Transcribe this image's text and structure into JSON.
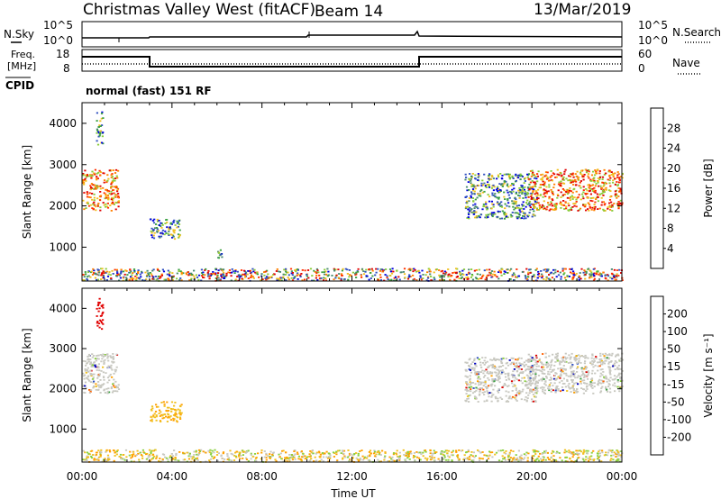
{
  "header": {
    "station": "Christmas Valley West (fitACF)",
    "beam": "Beam 14",
    "date": "13/Mar/2019"
  },
  "status_panels": {
    "nsky_label": "N.Sky",
    "nsearch_label": "N.Search",
    "nsky_ticks": [
      "10^5",
      "10^0"
    ],
    "nsearch_ticks": [
      "10^5",
      "10^0"
    ],
    "freq_label_1": "Freq.",
    "freq_label_2": "[MHz]",
    "freq_ticks": [
      "18",
      "8"
    ],
    "nave_label": "Nave",
    "nave_ticks": [
      "60",
      "0"
    ],
    "cpid_label": "CPID",
    "cpid_text": "normal (fast) 151 RF"
  },
  "chart_data": [
    {
      "type": "heatmap",
      "panel": "power",
      "ylabel": "Slant Range [km]",
      "yticks": [
        1000,
        2000,
        3000,
        4000
      ],
      "ylim": [
        180,
        4500
      ],
      "xlim": [
        0,
        24
      ],
      "colorbar_label": "Power [dB]",
      "colorbar_ticks": [
        "28",
        "24",
        "20",
        "16",
        "12",
        "8",
        "4"
      ],
      "colorbar_colors": [
        "#0000e0",
        "#3050c0",
        "#4a8a70",
        "#3aa040",
        "#8acc3a",
        "#f0c020",
        "#ff8000",
        "#ff3000",
        "#e00000"
      ],
      "regions": [
        {
          "x": [
            0.0,
            1.6
          ],
          "y": [
            1900,
            2900
          ],
          "level": "high"
        },
        {
          "x": [
            3.0,
            4.4
          ],
          "y": [
            1200,
            1700
          ],
          "level": "mid"
        },
        {
          "x": [
            0.6,
            0.9
          ],
          "y": [
            3500,
            4300
          ],
          "level": "mid"
        },
        {
          "x": [
            6.0,
            6.2
          ],
          "y": [
            750,
            950
          ],
          "level": "mid"
        },
        {
          "x": [
            17.0,
            20.2
          ],
          "y": [
            1700,
            2800
          ],
          "level": "mid"
        },
        {
          "x": [
            19.8,
            24.0
          ],
          "y": [
            1900,
            2900
          ],
          "level": "high"
        },
        {
          "x": [
            0.0,
            24.0
          ],
          "y": [
            200,
            500
          ],
          "level": "ground"
        }
      ]
    },
    {
      "type": "heatmap",
      "panel": "velocity",
      "ylabel": "Slant Range [km]",
      "yticks": [
        1000,
        2000,
        3000,
        4000
      ],
      "ylim": [
        180,
        4500
      ],
      "xlim": [
        0,
        24
      ],
      "xlabel": "Time UT",
      "xticks": [
        "00:00",
        "04:00",
        "08:00",
        "12:00",
        "16:00",
        "20:00",
        "00:00"
      ],
      "colorbar_label": "Velocity [m s⁻¹]",
      "colorbar_ticks": [
        "200",
        "100",
        "50",
        "15",
        "-15",
        "-50",
        "-100",
        "-200"
      ],
      "colorbar_colors": [
        "#e00000",
        "#ff6000",
        "#ffa000",
        "#f0c020",
        "#c8c8c0",
        "#8ad040",
        "#3aa040",
        "#3050c0",
        "#0000c0"
      ],
      "regions": [
        {
          "x": [
            0.0,
            1.6
          ],
          "y": [
            1900,
            2900
          ],
          "level": "ground"
        },
        {
          "x": [
            3.0,
            4.4
          ],
          "y": [
            1200,
            1700
          ],
          "level": "orange"
        },
        {
          "x": [
            0.6,
            0.9
          ],
          "y": [
            3500,
            4300
          ],
          "level": "red"
        },
        {
          "x": [
            17.0,
            20.2
          ],
          "y": [
            1700,
            2800
          ],
          "level": "ground"
        },
        {
          "x": [
            19.8,
            24.0
          ],
          "y": [
            1900,
            2900
          ],
          "level": "ground"
        },
        {
          "x": [
            0.0,
            24.0
          ],
          "y": [
            200,
            500
          ],
          "level": "low"
        }
      ]
    }
  ]
}
